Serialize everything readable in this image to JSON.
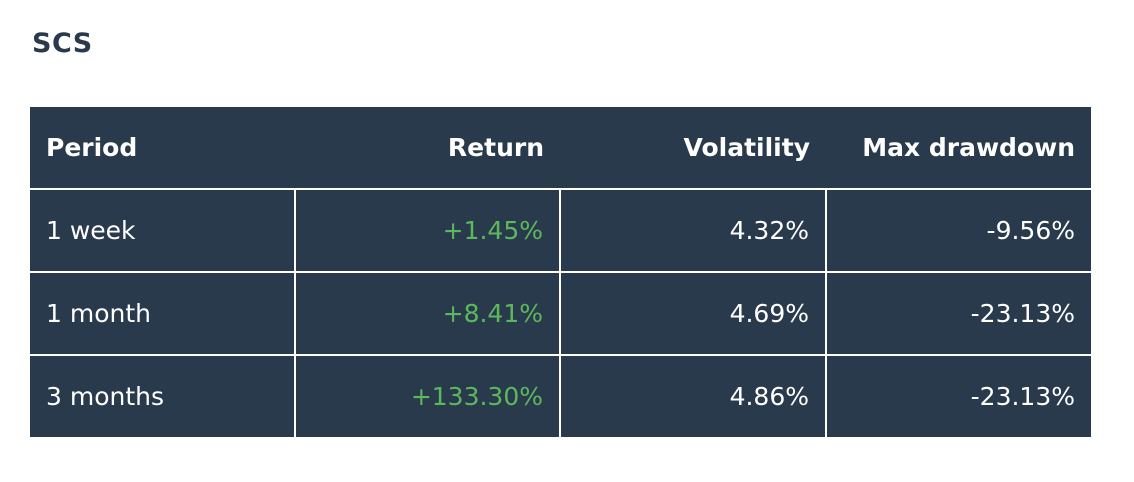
{
  "title": "SCS",
  "colors": {
    "header_bg": "#2a3a4d",
    "positive": "#5cb85c",
    "text": "#ffffff",
    "title": "#2a3a4d"
  },
  "table": {
    "headers": [
      "Period",
      "Return",
      "Volatility",
      "Max drawdown"
    ],
    "rows": [
      {
        "period": "1 week",
        "return": "+1.45%",
        "volatility": "4.32%",
        "max_drawdown": "-9.56%"
      },
      {
        "period": "1 month",
        "return": "+8.41%",
        "volatility": "4.69%",
        "max_drawdown": "-23.13%"
      },
      {
        "period": "3 months",
        "return": "+133.30%",
        "volatility": "4.86%",
        "max_drawdown": "-23.13%"
      }
    ]
  }
}
